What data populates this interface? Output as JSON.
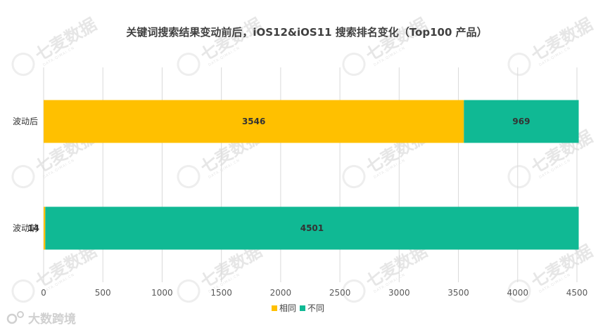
{
  "watermark": {
    "text": "七麦数据",
    "subtext": "DATA.QIMAI.CN"
  },
  "footer": {
    "text": "大数跨境"
  },
  "chart_data": {
    "type": "bar",
    "orientation": "horizontal",
    "stacked": true,
    "title": "关键词搜索结果变动前后，iOS12&iOS11 搜索排名变化（Top100 产品）",
    "categories": [
      "波动后",
      "波动前"
    ],
    "series": [
      {
        "name": "相同",
        "values": [
          3546,
          14
        ],
        "color": "#FFC000"
      },
      {
        "name": "不同",
        "values": [
          969,
          4501
        ],
        "color": "#10B994"
      }
    ],
    "xlim": [
      0,
      4500
    ],
    "xticks": [
      "0",
      "500",
      "1000",
      "1500",
      "2000",
      "2500",
      "3000",
      "3500",
      "4000",
      "4500"
    ],
    "grid": true,
    "legend": "bottom"
  }
}
